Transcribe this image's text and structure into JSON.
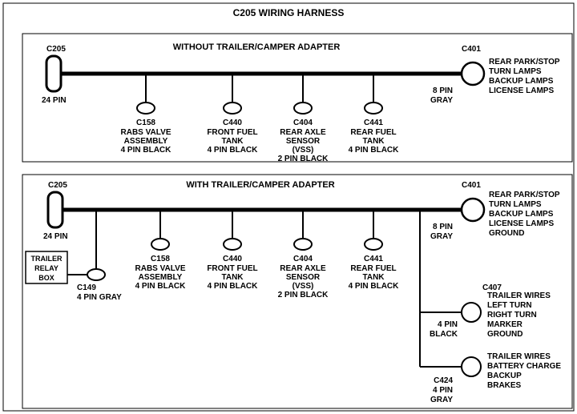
{
  "title": "C205 WIRING HARNESS",
  "diagram1": {
    "subtitle": "WITHOUT  TRAILER/CAMPER  ADAPTER",
    "left": {
      "id": "C205",
      "pins": "24 PIN"
    },
    "right": {
      "id": "C401",
      "pins": "8 PIN",
      "color": "GRAY",
      "labels": [
        "REAR PARK/STOP",
        "TURN LAMPS",
        "BACKUP LAMPS",
        "LICENSE LAMPS"
      ]
    },
    "drops": [
      {
        "id": "C158",
        "lines": [
          "RABS VALVE",
          "ASSEMBLY",
          "4 PIN BLACK"
        ]
      },
      {
        "id": "C440",
        "lines": [
          "FRONT FUEL",
          "TANK",
          "4 PIN BLACK"
        ]
      },
      {
        "id": "C404",
        "lines": [
          "REAR AXLE",
          "SENSOR",
          "(VSS)",
          "2 PIN BLACK"
        ]
      },
      {
        "id": "C441",
        "lines": [
          "REAR FUEL",
          "TANK",
          "4 PIN BLACK"
        ]
      }
    ]
  },
  "diagram2": {
    "subtitle": "WITH TRAILER/CAMPER  ADAPTER",
    "left": {
      "id": "C205",
      "pins": "24 PIN"
    },
    "right": {
      "id": "C401",
      "pins": "8 PIN",
      "color": "GRAY",
      "labels": [
        "REAR PARK/STOP",
        "TURN LAMPS",
        "BACKUP LAMPS",
        "LICENSE LAMPS",
        "GROUND"
      ]
    },
    "drops": [
      {
        "id": "C158",
        "lines": [
          "RABS VALVE",
          "ASSEMBLY",
          "4 PIN BLACK"
        ]
      },
      {
        "id": "C440",
        "lines": [
          "FRONT FUEL",
          "TANK",
          "4 PIN BLACK"
        ]
      },
      {
        "id": "C404",
        "lines": [
          "REAR AXLE",
          "SENSOR",
          "(VSS)",
          "2 PIN BLACK"
        ]
      },
      {
        "id": "C441",
        "lines": [
          "REAR FUEL",
          "TANK",
          "4 PIN BLACK"
        ]
      }
    ],
    "relay": {
      "box": [
        "TRAILER",
        "RELAY",
        "BOX"
      ],
      "id": "C149",
      "pins": "4 PIN GRAY"
    },
    "branch1": {
      "id": "C407",
      "pins": "4 PIN",
      "color": "BLACK",
      "labels": [
        "TRAILER WIRES",
        " LEFT TURN",
        "RIGHT TURN",
        "MARKER",
        "GROUND"
      ]
    },
    "branch2": {
      "id": "C424",
      "pins": "4 PIN",
      "color": "GRAY",
      "labels": [
        "TRAILER  WIRES",
        "BATTERY CHARGE",
        "BACKUP",
        "BRAKES"
      ]
    }
  },
  "style": {
    "bus_width": 5,
    "thin": 2,
    "font_small": 10,
    "font_title": 12,
    "color": "#000000"
  }
}
